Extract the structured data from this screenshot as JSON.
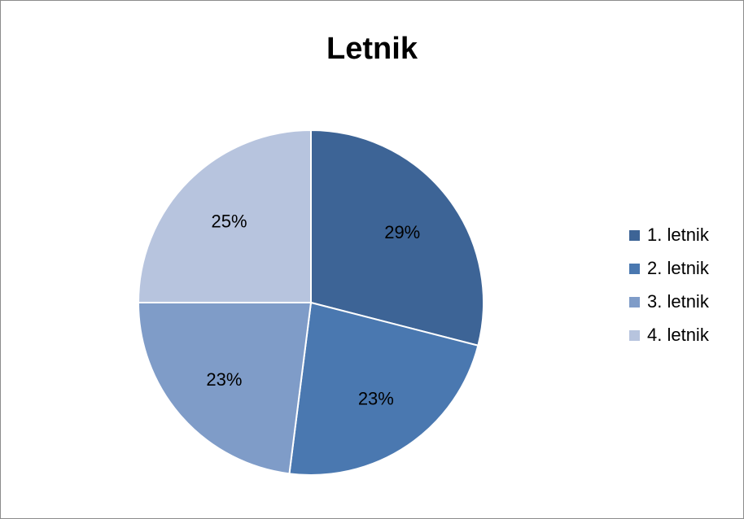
{
  "chart_data": {
    "type": "pie",
    "title": "Letnik",
    "categories": [
      "1. letnik",
      "2. letnik",
      "3. letnik",
      "4. letnik"
    ],
    "values": [
      29,
      23,
      23,
      25
    ],
    "labels": [
      "29%",
      "23%",
      "23%",
      "25%"
    ],
    "colors": [
      "#3D6496",
      "#4A78B0",
      "#7F9CC8",
      "#B7C4DE"
    ],
    "legend_position": "right"
  }
}
